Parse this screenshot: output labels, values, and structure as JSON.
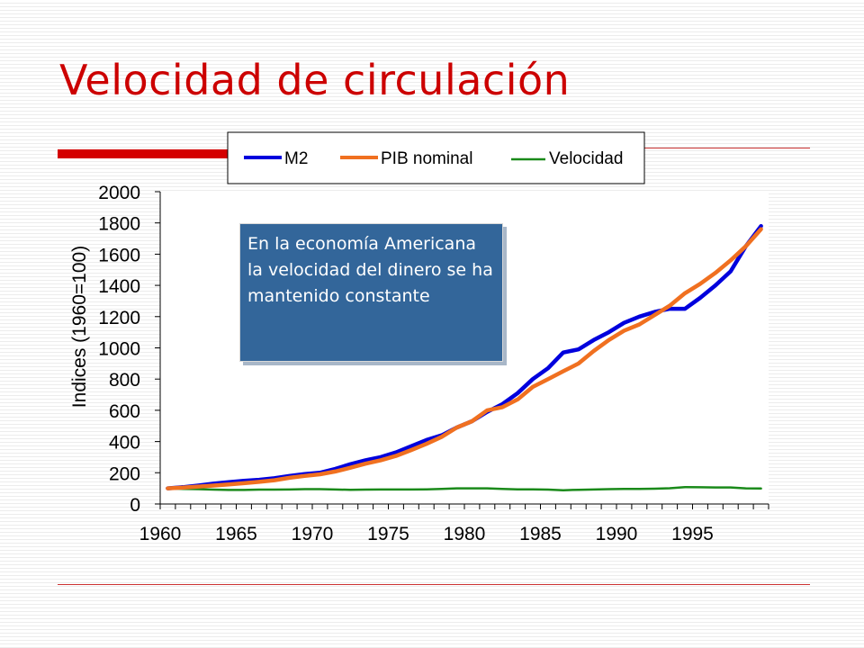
{
  "slide": {
    "title": "Velocidad de circulación",
    "callout": "En la economía Americana la velocidad del dinero se ha mantenido constante"
  },
  "colors": {
    "title": "#cc0000",
    "accent_bar": "#d40000",
    "callout_bg": "#33669a",
    "m2": "#0000dd",
    "pib": "#f07020",
    "velocidad": "#1a8a1a"
  },
  "chart_data": {
    "type": "line",
    "title": "",
    "xlabel": "",
    "ylabel": "Indices (1960=100)",
    "xlim": [
      1960,
      2000
    ],
    "ylim": [
      0,
      2000
    ],
    "yticks": [
      0,
      200,
      400,
      600,
      800,
      1000,
      1200,
      1400,
      1600,
      1800,
      2000
    ],
    "xtick_labels": [
      "1960",
      "1965",
      "1970",
      "1975",
      "1980",
      "1985",
      "1990",
      "1995"
    ],
    "legend": "top",
    "grid": false,
    "x": [
      1960.5,
      1961.5,
      1962.5,
      1963.5,
      1964.5,
      1965.5,
      1966.5,
      1967.5,
      1968.5,
      1969.5,
      1970.5,
      1971.5,
      1972.5,
      1973.5,
      1974.5,
      1975.5,
      1976.5,
      1977.5,
      1978.5,
      1979.5,
      1980.5,
      1981.5,
      1982.5,
      1983.5,
      1984.5,
      1985.5,
      1986.5,
      1987.5,
      1988.5,
      1989.5,
      1990.5,
      1991.5,
      1992.5,
      1993.5,
      1994.5,
      1995.5,
      1996.5,
      1997.5,
      1998.5,
      1999.5
    ],
    "series": [
      {
        "name": "M2",
        "values": [
          100,
          108,
          118,
          130,
          140,
          148,
          155,
          165,
          180,
          192,
          200,
          225,
          255,
          280,
          300,
          330,
          370,
          410,
          440,
          490,
          530,
          590,
          640,
          710,
          800,
          870,
          970,
          990,
          1050,
          1100,
          1160,
          1200,
          1230,
          1250,
          1250,
          1320,
          1400,
          1490,
          1650,
          1780
        ]
      },
      {
        "name": "PIB nominal",
        "values": [
          100,
          105,
          112,
          118,
          125,
          133,
          142,
          152,
          168,
          180,
          190,
          208,
          232,
          258,
          280,
          308,
          345,
          385,
          430,
          490,
          530,
          600,
          620,
          670,
          750,
          800,
          850,
          900,
          980,
          1050,
          1110,
          1150,
          1210,
          1270,
          1350,
          1410,
          1480,
          1560,
          1650,
          1760
        ]
      },
      {
        "name": "Velocidad",
        "values": [
          100,
          97,
          95,
          92,
          90,
          90,
          92,
          92,
          93,
          95,
          95,
          93,
          91,
          92,
          93,
          93,
          93,
          94,
          97,
          100,
          100,
          100,
          97,
          94,
          94,
          92,
          88,
          91,
          93,
          95,
          96,
          96,
          98,
          101,
          108,
          107,
          106,
          106,
          100,
          99
        ]
      }
    ]
  }
}
